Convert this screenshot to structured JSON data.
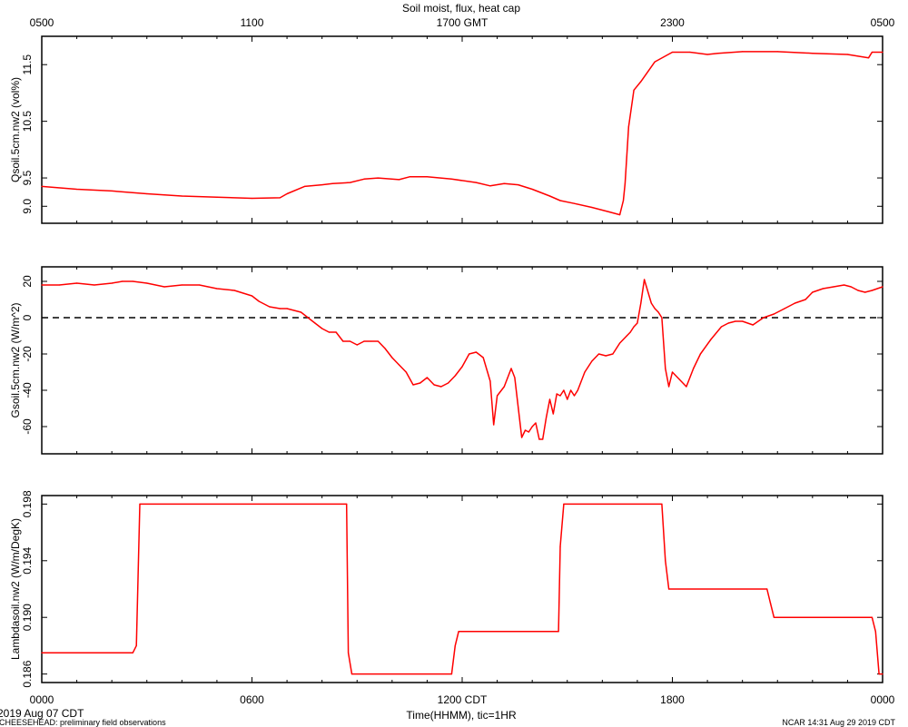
{
  "title": "Soil moist, flux, heat cap",
  "top_axis": {
    "tick_labels": [
      "0500",
      "1100",
      "1700 GMT",
      "2300",
      "0500"
    ]
  },
  "bottom_axis": {
    "tick_labels": [
      "0000",
      "0600",
      "1200 CDT",
      "1800",
      "0000"
    ],
    "label": "Time(HHMM), tic=1HR"
  },
  "footer": {
    "date": "2019 Aug 07 CDT",
    "project": "CHEESEHEAD: preliminary field observations",
    "stamp": "NCAR 14:31 Aug 29 2019 CDT"
  },
  "colors": {
    "series": "#ff0000",
    "axes": "#000000",
    "zero_line": "#000000"
  },
  "chart_data": [
    {
      "type": "line",
      "ylabel": "Qsoil.5cm.nw2 (vol%)",
      "ylim": [
        8.7,
        12.0
      ],
      "y_ticks": [
        9.0,
        9.5,
        10.5,
        11.5
      ],
      "y_tick_labels": [
        "9.0",
        "9.5",
        "10.5",
        "11.5"
      ],
      "x_range_hours": [
        0,
        24
      ],
      "x": [
        0,
        1,
        2,
        3,
        4,
        5,
        6,
        6.8,
        7,
        7.5,
        8,
        8.3,
        8.8,
        9.2,
        9.6,
        10.2,
        10.5,
        11,
        11.7,
        12.4,
        12.8,
        13.2,
        13.6,
        14,
        14.5,
        14.8,
        15.2,
        15.7,
        16.2,
        16.5,
        16.6,
        16.65,
        16.75,
        16.9,
        17.1,
        17.5,
        18,
        18.5,
        19,
        19.3,
        20,
        21,
        22,
        23,
        23.6,
        23.7,
        24
      ],
      "values": [
        9.35,
        9.3,
        9.27,
        9.22,
        9.18,
        9.16,
        9.14,
        9.15,
        9.22,
        9.35,
        9.38,
        9.4,
        9.42,
        9.48,
        9.5,
        9.47,
        9.52,
        9.52,
        9.48,
        9.42,
        9.36,
        9.4,
        9.38,
        9.3,
        9.18,
        9.1,
        9.05,
        8.98,
        8.9,
        8.85,
        9.1,
        9.4,
        10.4,
        11.05,
        11.2,
        11.55,
        11.72,
        11.72,
        11.68,
        11.7,
        11.73,
        11.73,
        11.7,
        11.68,
        11.62,
        11.72,
        11.72
      ]
    },
    {
      "type": "line",
      "ylabel": "Gsoil.5cm.nw2 (W/m^2)",
      "ylim": [
        -75,
        28
      ],
      "y_ticks": [
        20,
        0,
        -20,
        -40,
        -60
      ],
      "y_tick_labels": [
        "20",
        "0",
        "-20",
        "-40",
        "-60"
      ],
      "zero_line": true,
      "x_range_hours": [
        0,
        24
      ],
      "x": [
        0,
        0.5,
        1,
        1.5,
        2,
        2.3,
        2.6,
        3,
        3.5,
        4,
        4.5,
        5,
        5.5,
        6,
        6.2,
        6.5,
        6.8,
        7,
        7.4,
        7.6,
        7.8,
        8,
        8.2,
        8.4,
        8.6,
        8.8,
        9,
        9.2,
        9.4,
        9.6,
        9.8,
        10,
        10.2,
        10.4,
        10.6,
        10.8,
        11,
        11.2,
        11.4,
        11.6,
        11.8,
        12,
        12.2,
        12.4,
        12.6,
        12.8,
        12.9,
        13,
        13.2,
        13.4,
        13.5,
        13.7,
        13.8,
        13.9,
        14,
        14.1,
        14.2,
        14.3,
        14.4,
        14.5,
        14.6,
        14.7,
        14.8,
        14.9,
        15,
        15.1,
        15.2,
        15.3,
        15.5,
        15.7,
        15.9,
        16.1,
        16.3,
        16.5,
        16.7,
        16.8,
        16.9,
        17,
        17.1,
        17.2,
        17.4,
        17.5,
        17.6,
        17.7,
        17.8,
        17.9,
        18,
        18.2,
        18.4,
        18.6,
        18.8,
        19.1,
        19.4,
        19.6,
        19.8,
        20,
        20.3,
        20.6,
        20.9,
        21.2,
        21.5,
        21.8,
        22,
        22.3,
        22.6,
        22.9,
        23.1,
        23.3,
        23.5,
        23.7,
        24
      ],
      "values": [
        18,
        18,
        19,
        18,
        19,
        20,
        20,
        19,
        17,
        18,
        18,
        16,
        15,
        12,
        9,
        6,
        5,
        5,
        3,
        0,
        -3,
        -6,
        -8,
        -8,
        -13,
        -13,
        -15,
        -13,
        -13,
        -13,
        -17,
        -22,
        -26,
        -30,
        -37,
        -36,
        -33,
        -37,
        -38,
        -36,
        -32,
        -27,
        -20,
        -19,
        -22,
        -35,
        -59,
        -43,
        -38,
        -28,
        -33,
        -66,
        -62,
        -63,
        -60,
        -58,
        -67,
        -67,
        -55,
        -45,
        -53,
        -42,
        -43,
        -40,
        -45,
        -40,
        -43,
        -40,
        -30,
        -24,
        -20,
        -21,
        -20,
        -14,
        -10,
        -8,
        -5,
        -3,
        8,
        21,
        8,
        5,
        3,
        0,
        -28,
        -38,
        -30,
        -34,
        -38,
        -28,
        -20,
        -12,
        -5,
        -3,
        -2,
        -2,
        -4,
        0,
        2,
        5,
        8,
        10,
        14,
        16,
        17,
        18,
        17,
        15,
        14,
        15,
        17
      ]
    },
    {
      "type": "line",
      "ylabel": "Lambdasoil.nw2 (W/m/DegK)",
      "ylim": [
        0.1854,
        0.1986
      ],
      "y_ticks": [
        0.198,
        0.194,
        0.19,
        0.186
      ],
      "y_tick_labels": [
        "0.198",
        "0.194",
        "0.190",
        "0.186"
      ],
      "x_range_hours": [
        0,
        24
      ],
      "x": [
        0,
        2.6,
        2.7,
        2.8,
        8.7,
        8.75,
        8.85,
        11.7,
        11.8,
        11.9,
        14.75,
        14.8,
        14.9,
        17.7,
        17.8,
        17.9,
        20.7,
        20.8,
        20.9,
        23.7,
        23.8,
        23.9,
        24
      ],
      "values": [
        0.1875,
        0.1875,
        0.188,
        0.198,
        0.198,
        0.1875,
        0.186,
        0.186,
        0.188,
        0.189,
        0.189,
        0.195,
        0.198,
        0.198,
        0.194,
        0.192,
        0.192,
        0.191,
        0.19,
        0.19,
        0.189,
        0.186,
        0.186
      ]
    }
  ]
}
